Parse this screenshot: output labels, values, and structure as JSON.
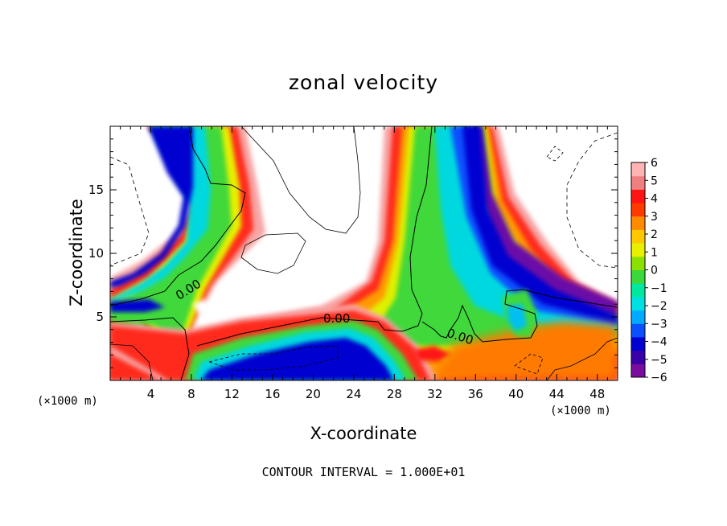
{
  "chart_data": {
    "type": "heatmap",
    "title": "zonal velocity",
    "xlabel": "X-coordinate",
    "ylabel": "Z-coordinate",
    "x_unit": "(×1000 m)",
    "y_unit": "(×1000 m)",
    "xlim": [
      0,
      50
    ],
    "ylim": [
      0,
      20
    ],
    "x_ticks": [
      4,
      8,
      12,
      16,
      20,
      24,
      28,
      32,
      36,
      40,
      44,
      48
    ],
    "y_ticks": [
      5,
      10,
      15
    ],
    "colorbar": {
      "min": -6,
      "max": 6,
      "ticks": [
        6,
        5,
        4,
        3,
        2,
        1,
        0,
        -1,
        -2,
        -3,
        -4,
        -5,
        -6
      ],
      "colors": [
        "#7a0da0",
        "#3a00a8",
        "#0000d0",
        "#0a50ff",
        "#00aaff",
        "#00e0e0",
        "#00e8a0",
        "#3ad83a",
        "#8ce000",
        "#e8f000",
        "#ffc800",
        "#ff8c00",
        "#ff3a00",
        "#ff1414",
        "#f08080",
        "#ffb4b4"
      ]
    },
    "contour_labels": [
      "0.00",
      "0.00",
      "0.00"
    ],
    "footer": "CONTOUR INTERVAL = 1.000E+01"
  }
}
